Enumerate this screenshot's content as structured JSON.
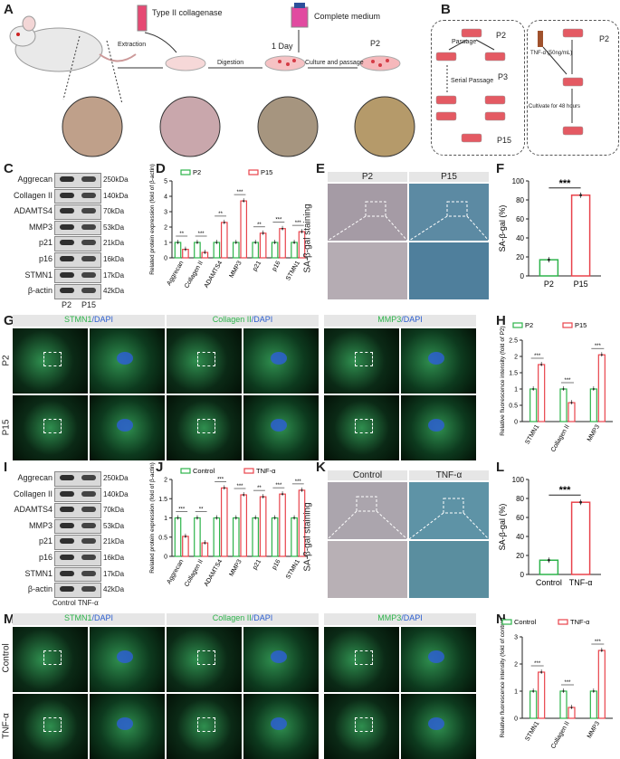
{
  "panels": {
    "A": "A",
    "B": "B",
    "C": "C",
    "D": "D",
    "E": "E",
    "F": "F",
    "G": "G",
    "H": "H",
    "I": "I",
    "J": "J",
    "K": "K",
    "L": "L",
    "M": "M",
    "N": "N"
  },
  "panelA": {
    "reagent1": "Type II collagenase",
    "reagent2": "Complete medium",
    "steps": [
      "Extraction",
      "Digestion",
      "Culture and passage"
    ],
    "day": "1 Day",
    "passage": "P2"
  },
  "panelB": {
    "p2": "P2",
    "passage": "Passage",
    "p3": "P3",
    "serial": "Serial Passage",
    "p15": "P15",
    "tnf": "TNF-α (50ng/mL)",
    "cultivate": "Cultivate for 48 hours",
    "p2b": "P2"
  },
  "panelC": {
    "proteins": [
      "Aggrecan",
      "Collagen II",
      "ADAMTS4",
      "MMP3",
      "p21",
      "p16",
      "STMN1",
      "β-actin"
    ],
    "kda": [
      "250kDa",
      "140kDa",
      "70kDa",
      "53kDa",
      "21kDa",
      "16kDa",
      "17kDa",
      "42kDa"
    ],
    "lanes": [
      "P2",
      "P15"
    ]
  },
  "panelE": {
    "cols": [
      "P2",
      "P15"
    ],
    "ylabel": "SA-β-gal staining"
  },
  "panelG": {
    "stains": [
      [
        "STMN1",
        "/DAPI"
      ],
      [
        "Collagen II",
        "/DAPI"
      ],
      [
        "MMP3",
        "/DAPI"
      ]
    ],
    "rows": [
      "P2",
      "P15"
    ]
  },
  "panelI": {
    "proteins": [
      "Aggrecan",
      "Collagen II",
      "ADAMTS4",
      "MMP3",
      "p21",
      "p16",
      "STMN1",
      "β-actin"
    ],
    "kda": [
      "250kDa",
      "140kDa",
      "70kDa",
      "53kDa",
      "21kDa",
      "16kDa",
      "17kDa",
      "42kDa"
    ],
    "lanes": "Control TNF-α"
  },
  "panelK": {
    "cols": [
      "Control",
      "TNF-α"
    ],
    "ylabel": "SA-β-gal staining"
  },
  "panelM": {
    "stains": [
      [
        "STMN1",
        "/DAPI"
      ],
      [
        "Collagen II",
        "/DAPI"
      ],
      [
        "MMP3",
        "/DAPI"
      ]
    ],
    "rows": [
      "Control",
      "TNF-α"
    ]
  },
  "colors": {
    "control": "#2db34a",
    "treat": "#e8434b"
  },
  "chart_data": [
    {
      "id": "D",
      "type": "bar",
      "categories": [
        "Aggrecan",
        "Collagen II",
        "ADAMTS4",
        "MMP3",
        "p21",
        "p16",
        "STMN1"
      ],
      "series": [
        {
          "name": "P2",
          "values": [
            1.0,
            1.0,
            1.0,
            1.0,
            1.0,
            1.0,
            1.0
          ]
        },
        {
          "name": "P15",
          "values": [
            0.55,
            0.35,
            2.3,
            3.7,
            1.6,
            1.9,
            1.7
          ]
        }
      ],
      "ylabel": "Related protein expression (fold of β-actin)",
      "ylim": [
        0,
        5
      ],
      "yticks": [
        0,
        1,
        2,
        3,
        4,
        5
      ],
      "sig": [
        "**",
        "***",
        "**",
        "***",
        "**",
        "***",
        "***"
      ]
    },
    {
      "id": "F",
      "type": "bar",
      "categories": [
        "P2",
        "P15"
      ],
      "values": [
        17,
        85
      ],
      "ylabel": "SA-β-gal (%)",
      "ylim": [
        0,
        100
      ],
      "yticks": [
        0,
        20,
        40,
        60,
        80,
        100
      ],
      "sig": "***"
    },
    {
      "id": "H",
      "type": "bar",
      "categories": [
        "STMN1",
        "Collagen II",
        "MMP3"
      ],
      "series": [
        {
          "name": "P2",
          "values": [
            1.0,
            1.0,
            1.0
          ]
        },
        {
          "name": "P15",
          "values": [
            1.75,
            0.58,
            2.05
          ]
        }
      ],
      "ylabel": "Relative fluorescence intensity (fold of P2)",
      "ylim": [
        0,
        2.5
      ],
      "yticks": [
        0.0,
        0.5,
        1.0,
        1.5,
        2.0,
        2.5
      ],
      "sig": [
        "***",
        "***",
        "***"
      ]
    },
    {
      "id": "J",
      "type": "bar",
      "categories": [
        "Aggrecan",
        "Collagen II",
        "ADAMTS4",
        "MMP3",
        "p21",
        "p16",
        "STMN1"
      ],
      "series": [
        {
          "name": "Control",
          "values": [
            1.0,
            1.0,
            1.0,
            1.0,
            1.0,
            1.0,
            1.0
          ]
        },
        {
          "name": "TNF-α",
          "values": [
            0.52,
            0.35,
            1.78,
            1.6,
            1.55,
            1.62,
            1.72
          ]
        }
      ],
      "ylabel": "Related protein expression (fold of β-actin)",
      "ylim": [
        0,
        2
      ],
      "yticks": [
        0.0,
        0.5,
        1.0,
        1.5,
        2.0
      ],
      "sig": [
        "***",
        "**",
        "***",
        "***",
        "**",
        "***",
        "***"
      ]
    },
    {
      "id": "L",
      "type": "bar",
      "categories": [
        "Control",
        "TNF-α"
      ],
      "values": [
        15,
        76
      ],
      "ylabel": "SA-β-gal (%)",
      "ylim": [
        0,
        100
      ],
      "yticks": [
        0,
        20,
        40,
        60,
        80,
        100
      ],
      "sig": "***"
    },
    {
      "id": "N",
      "type": "bar",
      "categories": [
        "STMN1",
        "Collagen II",
        "MMP3"
      ],
      "series": [
        {
          "name": "Control",
          "values": [
            1.0,
            1.0,
            1.0
          ]
        },
        {
          "name": "TNF-α",
          "values": [
            1.7,
            0.4,
            2.5
          ]
        }
      ],
      "ylabel": "Relative fluorescence intensity (fold of control)",
      "ylim": [
        0,
        3
      ],
      "yticks": [
        0,
        1,
        2,
        3
      ],
      "sig": [
        "***",
        "***",
        "***"
      ]
    }
  ]
}
